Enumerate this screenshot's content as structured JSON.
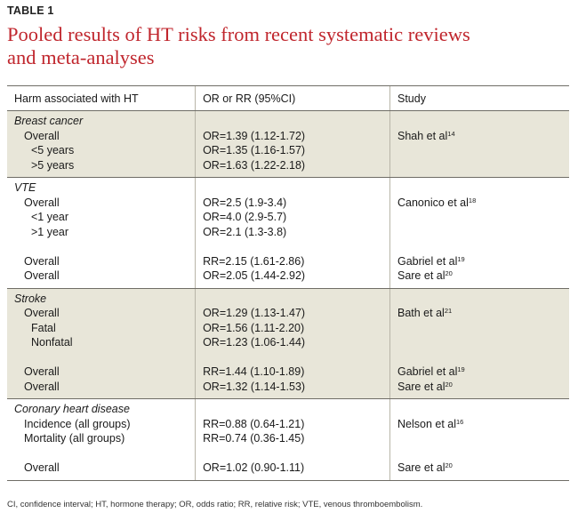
{
  "table_label": "TABLE 1",
  "title_line1": "Pooled results of HT risks from recent systematic reviews",
  "title_line2": "and meta-analyses",
  "headers": {
    "harm": "Harm associated with HT",
    "estimate": "OR or RR (95%CI)",
    "study": "Study"
  },
  "groups": [
    {
      "category": "Breast cancer",
      "rows": [
        {
          "label": "Overall",
          "indent": 1,
          "value": "OR=1.39 (1.12-1.72)",
          "study": "Shah et al",
          "ref": "14"
        },
        {
          "label": "<5 years",
          "indent": 2,
          "value": "OR=1.35 (1.16-1.57)",
          "study": "",
          "ref": ""
        },
        {
          "label": ">5 years",
          "indent": 2,
          "value": "OR=1.63 (1.22-2.18)",
          "study": "",
          "ref": ""
        }
      ]
    },
    {
      "category": "VTE",
      "rows": [
        {
          "label": "Overall",
          "indent": 1,
          "value": "OR=2.5 (1.9-3.4)",
          "study": "Canonico et al",
          "ref": "18"
        },
        {
          "label": "<1 year",
          "indent": 2,
          "value": "OR=4.0 (2.9-5.7)",
          "study": "",
          "ref": ""
        },
        {
          "label": ">1 year",
          "indent": 2,
          "value": "OR=2.1 (1.3-3.8)",
          "study": "",
          "ref": ""
        },
        {
          "gap": true
        },
        {
          "label": "Overall",
          "indent": 1,
          "value": "RR=2.15 (1.61-2.86)",
          "study": "Gabriel et al",
          "ref": "19"
        },
        {
          "label": "Overall",
          "indent": 1,
          "value": "OR=2.05 (1.44-2.92)",
          "study": "Sare et al",
          "ref": "20"
        }
      ]
    },
    {
      "category": "Stroke",
      "rows": [
        {
          "label": "Overall",
          "indent": 1,
          "value": "OR=1.29 (1.13-1.47)",
          "study": "Bath et al",
          "ref": "21"
        },
        {
          "label": "Fatal",
          "indent": 2,
          "value": "OR=1.56 (1.11-2.20)",
          "study": "",
          "ref": ""
        },
        {
          "label": "Nonfatal",
          "indent": 2,
          "value": "OR=1.23 (1.06-1.44)",
          "study": "",
          "ref": ""
        },
        {
          "gap": true
        },
        {
          "label": "Overall",
          "indent": 1,
          "value": "RR=1.44 (1.10-1.89)",
          "study": "Gabriel et al",
          "ref": "19"
        },
        {
          "label": "Overall",
          "indent": 1,
          "value": "OR=1.32 (1.14-1.53)",
          "study": "Sare et al",
          "ref": "20"
        }
      ]
    },
    {
      "category": "Coronary heart disease",
      "rows": [
        {
          "label": "Incidence (all groups)",
          "indent": 1,
          "value": "RR=0.88 (0.64-1.21)",
          "study": "Nelson et al",
          "ref": "16"
        },
        {
          "label": "Mortality (all groups)",
          "indent": 1,
          "value": "RR=0.74 (0.36-1.45)",
          "study": "",
          "ref": ""
        },
        {
          "gap": true
        },
        {
          "label": "Overall",
          "indent": 1,
          "value": "OR=1.02 (0.90-1.11)",
          "study": "Sare et al",
          "ref": "20"
        }
      ]
    }
  ],
  "footnote": "CI, confidence interval; HT, hormone therapy; OR, odds ratio; RR, relative risk; VTE, venous thromboembolism.",
  "colors": {
    "title": "#c0262d",
    "shade": "#e8e6d9",
    "rule": "#6f6d66"
  }
}
